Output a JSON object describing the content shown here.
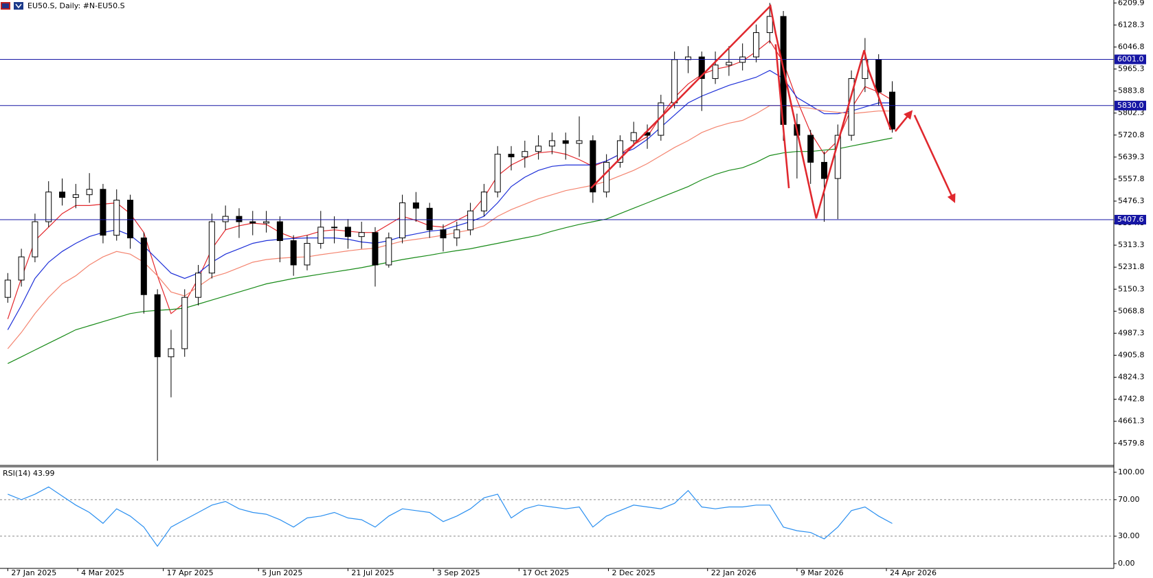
{
  "chart_data": [
    {
      "type": "candlestick",
      "title": "EU50.S, Daily:  #N-EU50.S",
      "x": [
        "27 Jan 2025",
        "3 Feb 2025",
        "10 Feb 2025",
        "17 Feb 2025",
        "24 Feb 2025",
        "3 Mar 2025",
        "10 Mar 2025",
        "17 Mar 2025",
        "24 Mar 2025",
        "31 Mar 2025",
        "7 Apr 2025",
        "14 Apr 2025",
        "21 Apr 2025",
        "28 Apr 2025",
        "5 May 2025",
        "12 May 2025",
        "19 May 2025",
        "26 May 2025",
        "2 Jun 2025",
        "9 Jun 2025",
        "16 Jun 2025",
        "23 Jun 2025",
        "30 Jun 2025",
        "7 Jul 2025",
        "14 Jul 2025",
        "21 Jul 2025",
        "28 Jul 2025",
        "4 Aug 2025",
        "11 Aug 2025",
        "18 Aug 2025",
        "25 Aug 2025",
        "1 Sep 2025",
        "8 Sep 2025",
        "15 Sep 2025",
        "22 Sep 2025",
        "29 Sep 2025",
        "6 Oct 2025",
        "13 Oct 2025",
        "20 Oct 2025",
        "27 Oct 2025",
        "3 Nov 2025",
        "10 Nov 2025",
        "17 Nov 2025",
        "24 Nov 2025",
        "1 Dec 2025",
        "8 Dec 2025",
        "15 Dec 2025",
        "22 Dec 2025",
        "29 Dec 2025",
        "5 Jan 2026",
        "12 Jan 2026",
        "19 Jan 2026",
        "26 Jan 2026",
        "2 Feb 2026",
        "9 Feb 2026",
        "16 Feb 2026",
        "23 Feb 2026",
        "2 Mar 2026",
        "9 Mar 2026",
        "16 Mar 2026",
        "23 Mar 2026",
        "30 Mar 2026",
        "6 Apr 2026",
        "13 Apr 2026",
        "20 Apr 2026",
        "27 Apr 2026"
      ],
      "open": [
        5120,
        5184,
        5270,
        5400,
        5510,
        5490,
        5500,
        5520,
        5350,
        5480,
        5340,
        5130,
        4900,
        4930,
        5120,
        5210,
        5400,
        5420,
        5400,
        5395,
        5400,
        5330,
        5240,
        5320,
        5380,
        5380,
        5345,
        5360,
        5240,
        5340,
        5470,
        5450,
        5370,
        5340,
        5370,
        5440,
        5510,
        5650,
        5640,
        5660,
        5680,
        5700,
        5690,
        5700,
        5510,
        5620,
        5700,
        5730,
        5720,
        5840,
        6000,
        6010,
        5930,
        5980,
        5990,
        6010,
        6100,
        6160,
        5760,
        5720,
        5620,
        5560,
        5720,
        5930,
        6000,
        5880
      ],
      "high": [
        5210,
        5300,
        5430,
        5550,
        5560,
        5540,
        5580,
        5540,
        5520,
        5500,
        5360,
        5150,
        5000,
        5150,
        5240,
        5430,
        5460,
        5450,
        5440,
        5440,
        5420,
        5350,
        5350,
        5440,
        5420,
        5410,
        5400,
        5380,
        5360,
        5500,
        5510,
        5470,
        5390,
        5400,
        5470,
        5540,
        5680,
        5680,
        5700,
        5720,
        5730,
        5730,
        5790,
        5720,
        5650,
        5720,
        5770,
        5760,
        5870,
        6030,
        6050,
        6030,
        6030,
        6050,
        6060,
        6130,
        6210,
        6180,
        5800,
        5740,
        5660,
        5760,
        5960,
        6080,
        6020,
        5920
      ],
      "low": [
        5100,
        5160,
        5250,
        5380,
        5460,
        5450,
        5470,
        5320,
        5330,
        5300,
        5060,
        4515,
        4750,
        4900,
        5090,
        5190,
        5370,
        5340,
        5350,
        5360,
        5250,
        5200,
        5220,
        5300,
        5320,
        5300,
        5300,
        5160,
        5230,
        5320,
        5400,
        5340,
        5290,
        5310,
        5350,
        5420,
        5490,
        5590,
        5600,
        5630,
        5650,
        5630,
        5640,
        5470,
        5490,
        5600,
        5680,
        5670,
        5700,
        5820,
        5950,
        5810,
        5910,
        5940,
        5960,
        5990,
        6060,
        5700,
        5560,
        5540,
        5400,
        5410,
        5700,
        5880,
        5830,
        5730
      ],
      "close": [
        5184,
        5270,
        5400,
        5510,
        5490,
        5500,
        5520,
        5350,
        5480,
        5340,
        5130,
        4900,
        4930,
        5120,
        5210,
        5400,
        5420,
        5400,
        5395,
        5400,
        5330,
        5240,
        5320,
        5380,
        5380,
        5345,
        5360,
        5240,
        5340,
        5470,
        5450,
        5370,
        5340,
        5370,
        5440,
        5510,
        5650,
        5640,
        5660,
        5680,
        5700,
        5690,
        5700,
        5510,
        5620,
        5700,
        5730,
        5720,
        5840,
        6000,
        6010,
        5930,
        5980,
        5990,
        6010,
        6100,
        6160,
        5760,
        5720,
        5620,
        5560,
        5720,
        5930,
        6000,
        5880,
        5743
      ],
      "series": [
        {
          "color": "#e3262b",
          "values": [
            5040,
            5190,
            5330,
            5380,
            5430,
            5460,
            5460,
            5465,
            5470,
            5430,
            5360,
            5200,
            5060,
            5100,
            5190,
            5300,
            5370,
            5385,
            5395,
            5390,
            5360,
            5340,
            5350,
            5365,
            5370,
            5365,
            5360,
            5360,
            5390,
            5420,
            5405,
            5385,
            5380,
            5405,
            5430,
            5490,
            5570,
            5610,
            5635,
            5655,
            5660,
            5650,
            5630,
            5605,
            5625,
            5650,
            5685,
            5715,
            5790,
            5860,
            5910,
            5945,
            5965,
            5975,
            5995,
            6030,
            6070,
            5990,
            5850,
            5730,
            5650,
            5700,
            5820,
            5900,
            5880,
            5850
          ]
        },
        {
          "color": "#1d2fd8",
          "values": [
            5000,
            5090,
            5190,
            5250,
            5290,
            5320,
            5345,
            5360,
            5370,
            5350,
            5310,
            5260,
            5210,
            5190,
            5210,
            5250,
            5280,
            5300,
            5320,
            5330,
            5335,
            5338,
            5340,
            5340,
            5340,
            5335,
            5325,
            5320,
            5330,
            5345,
            5355,
            5365,
            5370,
            5385,
            5400,
            5420,
            5470,
            5530,
            5565,
            5590,
            5605,
            5610,
            5610,
            5610,
            5625,
            5650,
            5670,
            5705,
            5750,
            5795,
            5840,
            5865,
            5885,
            5905,
            5920,
            5935,
            5960,
            5930,
            5860,
            5830,
            5800,
            5800,
            5810,
            5825,
            5840,
            5840
          ]
        },
        {
          "color": "#f4846f",
          "values": [
            4930,
            4990,
            5060,
            5120,
            5170,
            5200,
            5240,
            5270,
            5290,
            5280,
            5250,
            5200,
            5140,
            5125,
            5160,
            5195,
            5210,
            5230,
            5250,
            5260,
            5265,
            5268,
            5270,
            5278,
            5285,
            5292,
            5298,
            5302,
            5315,
            5328,
            5335,
            5342,
            5350,
            5360,
            5370,
            5385,
            5420,
            5445,
            5465,
            5485,
            5500,
            5515,
            5525,
            5535,
            5550,
            5570,
            5590,
            5615,
            5645,
            5675,
            5700,
            5730,
            5750,
            5765,
            5775,
            5800,
            5830,
            5830,
            5825,
            5820,
            5810,
            5805,
            5800,
            5805,
            5810,
            5810
          ]
        },
        {
          "color": "#178a17",
          "values": [
            4875,
            4900,
            4925,
            4950,
            4975,
            5000,
            5015,
            5030,
            5045,
            5060,
            5068,
            5072,
            5075,
            5080,
            5095,
            5110,
            5125,
            5140,
            5155,
            5170,
            5180,
            5190,
            5198,
            5206,
            5214,
            5222,
            5230,
            5240,
            5250,
            5260,
            5268,
            5276,
            5285,
            5293,
            5300,
            5310,
            5320,
            5330,
            5340,
            5350,
            5365,
            5378,
            5390,
            5400,
            5410,
            5430,
            5450,
            5470,
            5490,
            5510,
            5530,
            5555,
            5575,
            5590,
            5600,
            5620,
            5645,
            5655,
            5660,
            5660,
            5665,
            5670,
            5680,
            5690,
            5700,
            5710
          ]
        }
      ],
      "levels": [
        {
          "value": 6001.0,
          "label": "6001.0"
        },
        {
          "value": 5830.0,
          "label": "5830.0"
        },
        {
          "value": 5407.6,
          "label": "5407.6"
        }
      ],
      "level_color": "#1616a4",
      "xlim": [
        "23 Jan 2025",
        "19 Aug 2026"
      ],
      "xticks": [
        "27 Jan 2025",
        "4 Mar 2025",
        "17 Apr 2025",
        "5 Jun 2025",
        "21 Jul 2025",
        "3 Sep 2025",
        "17 Oct 2025",
        "2 Dec 2025",
        "22 Jan 2026",
        "9 Mar 2026",
        "24 Apr 2026"
      ],
      "ylim": [
        4497.9,
        6220.8
      ],
      "yticks": [
        6209.9,
        6128.3,
        6046.8,
        5965.3,
        5883.8,
        5802.3,
        5720.8,
        5639.3,
        5557.8,
        5476.3,
        5394.8,
        5313.3,
        5231.8,
        5150.3,
        5068.8,
        4987.3,
        4905.8,
        4824.3,
        4742.8,
        4661.3,
        4579.8
      ]
    },
    {
      "type": "line",
      "title": "RSI(14) 43.99",
      "color": "#2a8ff0",
      "values": [
        76,
        70,
        76,
        84,
        74,
        64,
        56,
        44,
        60,
        52,
        40,
        19,
        40,
        48,
        56,
        64,
        68,
        60,
        56,
        54,
        48,
        40,
        50,
        52,
        56,
        50,
        48,
        40,
        52,
        60,
        58,
        56,
        46,
        52,
        60,
        72,
        76,
        50,
        60,
        64,
        62,
        60,
        62,
        40,
        52,
        58,
        64,
        62,
        60,
        66,
        80,
        62,
        60,
        62,
        62,
        64,
        64,
        40,
        36,
        34,
        27,
        40,
        58,
        62,
        52,
        43.99
      ],
      "ylim": [
        -5.3,
        106
      ],
      "yticks": [
        {
          "value": 100,
          "label": "100.00"
        },
        {
          "value": 70,
          "label": "70.00"
        },
        {
          "value": 30,
          "label": "30.00"
        },
        {
          "value": 0,
          "label": "0.00"
        }
      ]
    }
  ]
}
